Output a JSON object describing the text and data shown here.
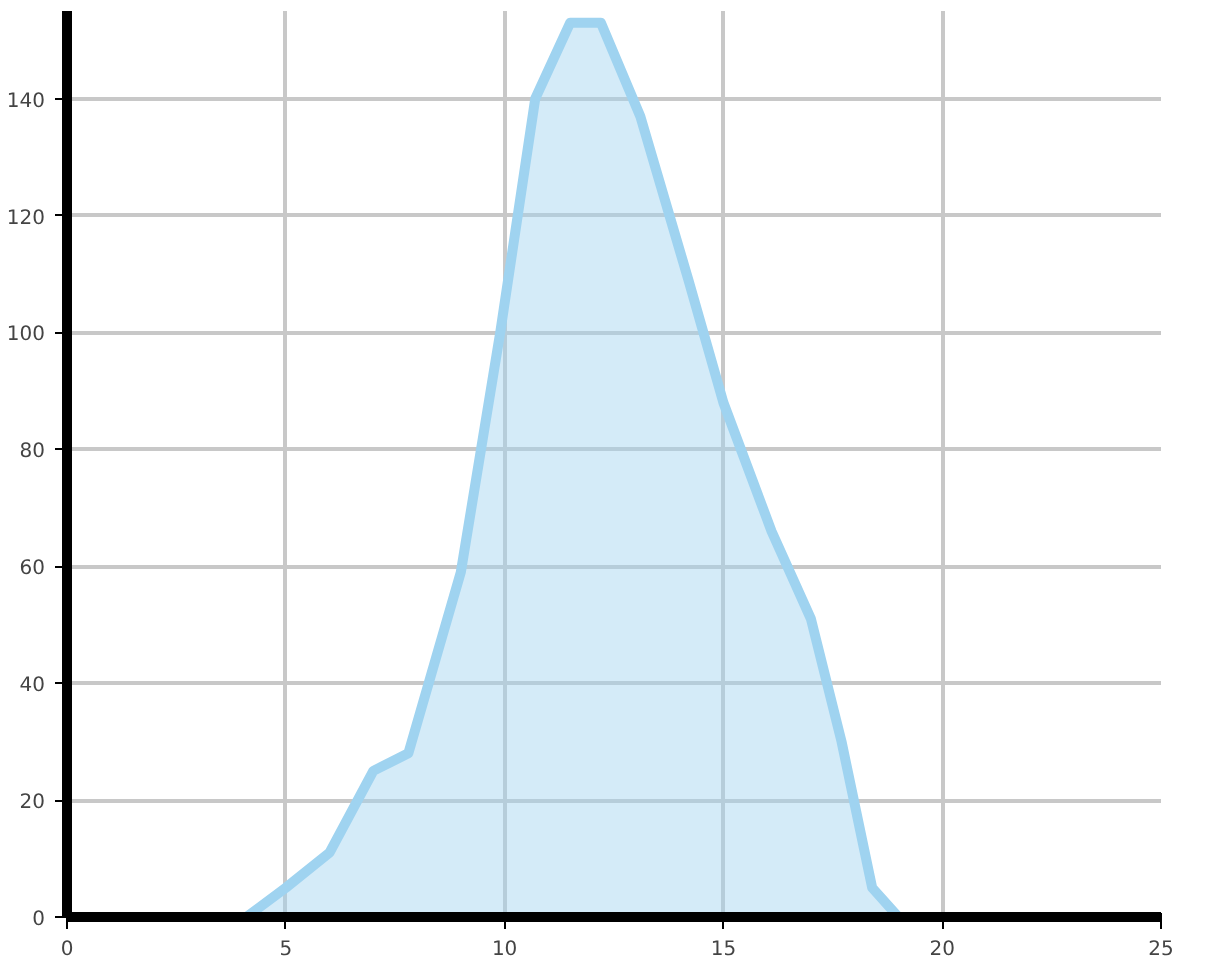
{
  "chart_data": {
    "type": "area",
    "x": [
      4.1,
      5,
      6,
      7,
      7.8,
      9,
      9.9,
      10.7,
      11.5,
      12.2,
      13.1,
      14.2,
      15,
      16.1,
      17,
      17.7,
      18.4,
      19,
      20
    ],
    "series": [
      {
        "color": "#9fd3f0",
        "values": [
          0,
          5,
          11,
          25,
          28,
          59,
          100,
          140,
          153,
          153,
          137,
          109,
          88,
          66,
          51,
          30,
          5,
          0,
          0
        ]
      }
    ],
    "xlim": [
      0,
      25
    ],
    "ylim": [
      0,
      155
    ],
    "xticks": [
      0,
      5,
      10,
      15,
      20,
      25
    ],
    "yticks": [
      0,
      20,
      40,
      60,
      80,
      100,
      120,
      140
    ],
    "grid": true
  }
}
